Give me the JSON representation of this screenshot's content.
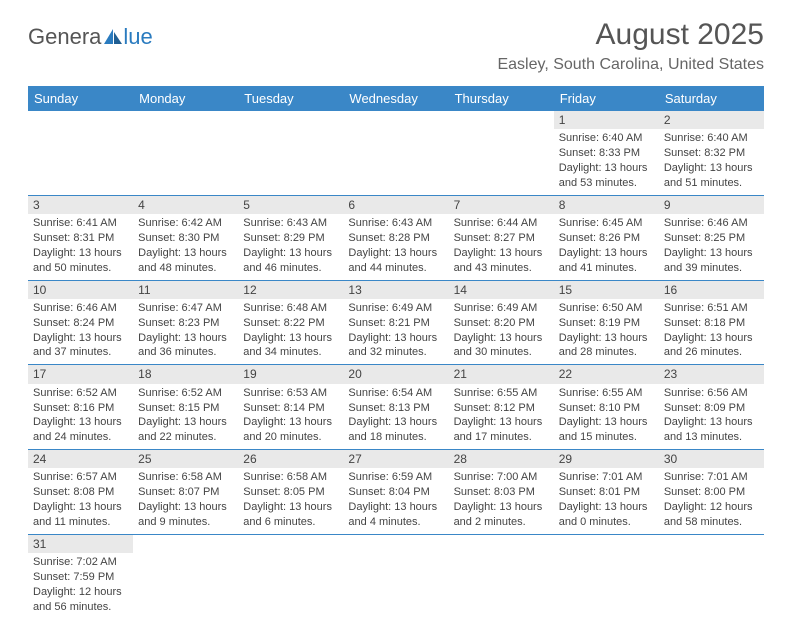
{
  "logo": {
    "text1": "Genera",
    "text2": "lue"
  },
  "title": "August 2025",
  "location": "Easley, South Carolina, United States",
  "colors": {
    "header_bg": "#3a87c7",
    "header_text": "#ffffff",
    "daynum_bg": "#e9e9e9",
    "row_divider": "#3a87c7",
    "body_text": "#444444",
    "logo_blue": "#2a7bbf",
    "logo_gray": "#555555"
  },
  "weekdays": [
    "Sunday",
    "Monday",
    "Tuesday",
    "Wednesday",
    "Thursday",
    "Friday",
    "Saturday"
  ],
  "grid": [
    [
      null,
      null,
      null,
      null,
      null,
      {
        "n": "1",
        "sr": "6:40 AM",
        "ss": "8:33 PM",
        "dl": "13 hours and 53 minutes."
      },
      {
        "n": "2",
        "sr": "6:40 AM",
        "ss": "8:32 PM",
        "dl": "13 hours and 51 minutes."
      }
    ],
    [
      {
        "n": "3",
        "sr": "6:41 AM",
        "ss": "8:31 PM",
        "dl": "13 hours and 50 minutes."
      },
      {
        "n": "4",
        "sr": "6:42 AM",
        "ss": "8:30 PM",
        "dl": "13 hours and 48 minutes."
      },
      {
        "n": "5",
        "sr": "6:43 AM",
        "ss": "8:29 PM",
        "dl": "13 hours and 46 minutes."
      },
      {
        "n": "6",
        "sr": "6:43 AM",
        "ss": "8:28 PM",
        "dl": "13 hours and 44 minutes."
      },
      {
        "n": "7",
        "sr": "6:44 AM",
        "ss": "8:27 PM",
        "dl": "13 hours and 43 minutes."
      },
      {
        "n": "8",
        "sr": "6:45 AM",
        "ss": "8:26 PM",
        "dl": "13 hours and 41 minutes."
      },
      {
        "n": "9",
        "sr": "6:46 AM",
        "ss": "8:25 PM",
        "dl": "13 hours and 39 minutes."
      }
    ],
    [
      {
        "n": "10",
        "sr": "6:46 AM",
        "ss": "8:24 PM",
        "dl": "13 hours and 37 minutes."
      },
      {
        "n": "11",
        "sr": "6:47 AM",
        "ss": "8:23 PM",
        "dl": "13 hours and 36 minutes."
      },
      {
        "n": "12",
        "sr": "6:48 AM",
        "ss": "8:22 PM",
        "dl": "13 hours and 34 minutes."
      },
      {
        "n": "13",
        "sr": "6:49 AM",
        "ss": "8:21 PM",
        "dl": "13 hours and 32 minutes."
      },
      {
        "n": "14",
        "sr": "6:49 AM",
        "ss": "8:20 PM",
        "dl": "13 hours and 30 minutes."
      },
      {
        "n": "15",
        "sr": "6:50 AM",
        "ss": "8:19 PM",
        "dl": "13 hours and 28 minutes."
      },
      {
        "n": "16",
        "sr": "6:51 AM",
        "ss": "8:18 PM",
        "dl": "13 hours and 26 minutes."
      }
    ],
    [
      {
        "n": "17",
        "sr": "6:52 AM",
        "ss": "8:16 PM",
        "dl": "13 hours and 24 minutes."
      },
      {
        "n": "18",
        "sr": "6:52 AM",
        "ss": "8:15 PM",
        "dl": "13 hours and 22 minutes."
      },
      {
        "n": "19",
        "sr": "6:53 AM",
        "ss": "8:14 PM",
        "dl": "13 hours and 20 minutes."
      },
      {
        "n": "20",
        "sr": "6:54 AM",
        "ss": "8:13 PM",
        "dl": "13 hours and 18 minutes."
      },
      {
        "n": "21",
        "sr": "6:55 AM",
        "ss": "8:12 PM",
        "dl": "13 hours and 17 minutes."
      },
      {
        "n": "22",
        "sr": "6:55 AM",
        "ss": "8:10 PM",
        "dl": "13 hours and 15 minutes."
      },
      {
        "n": "23",
        "sr": "6:56 AM",
        "ss": "8:09 PM",
        "dl": "13 hours and 13 minutes."
      }
    ],
    [
      {
        "n": "24",
        "sr": "6:57 AM",
        "ss": "8:08 PM",
        "dl": "13 hours and 11 minutes."
      },
      {
        "n": "25",
        "sr": "6:58 AM",
        "ss": "8:07 PM",
        "dl": "13 hours and 9 minutes."
      },
      {
        "n": "26",
        "sr": "6:58 AM",
        "ss": "8:05 PM",
        "dl": "13 hours and 6 minutes."
      },
      {
        "n": "27",
        "sr": "6:59 AM",
        "ss": "8:04 PM",
        "dl": "13 hours and 4 minutes."
      },
      {
        "n": "28",
        "sr": "7:00 AM",
        "ss": "8:03 PM",
        "dl": "13 hours and 2 minutes."
      },
      {
        "n": "29",
        "sr": "7:01 AM",
        "ss": "8:01 PM",
        "dl": "13 hours and 0 minutes."
      },
      {
        "n": "30",
        "sr": "7:01 AM",
        "ss": "8:00 PM",
        "dl": "12 hours and 58 minutes."
      }
    ],
    [
      {
        "n": "31",
        "sr": "7:02 AM",
        "ss": "7:59 PM",
        "dl": "12 hours and 56 minutes."
      },
      null,
      null,
      null,
      null,
      null,
      null
    ]
  ],
  "labels": {
    "sunrise": "Sunrise:",
    "sunset": "Sunset:",
    "daylight": "Daylight:"
  }
}
